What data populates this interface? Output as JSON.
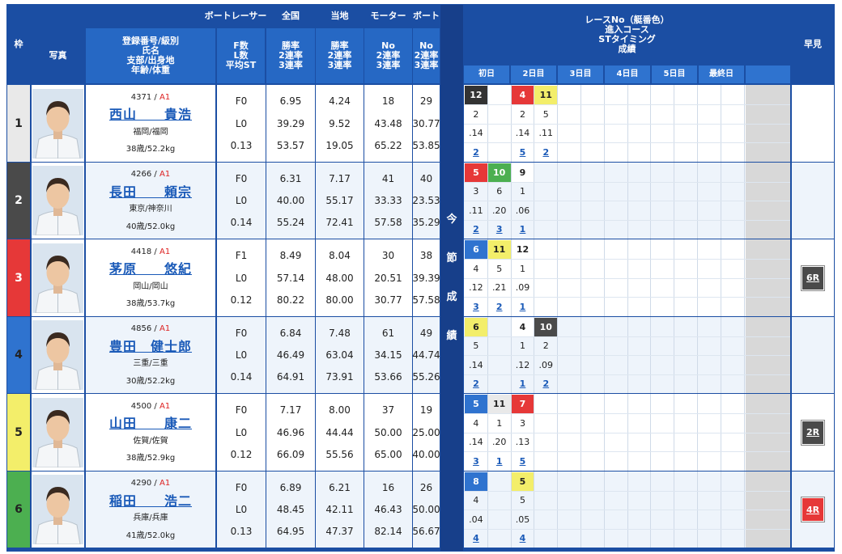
{
  "header": {
    "waku": "枠",
    "photo": "写真",
    "racer": "ボートレーサー",
    "racer_sub": [
      "登録番号/級別",
      "氏名",
      "支部/出身地",
      "年齢/体重"
    ],
    "fl_sub": [
      "F数",
      "L数",
      "平均ST"
    ],
    "zenkoku": "全国",
    "zenkoku_sub": [
      "勝率",
      "2連率",
      "3連率"
    ],
    "touchi": "当地",
    "touchi_sub": [
      "勝率",
      "2連率",
      "3連率"
    ],
    "motor": "モーター",
    "motor_sub": [
      "No",
      "2連率",
      "3連率"
    ],
    "boat": "ボート",
    "boat_sub": [
      "No",
      "2連率",
      "3連率"
    ],
    "race_info": [
      "レースNo（艇番色）",
      "進入コース",
      "STタイミング",
      "成績"
    ],
    "days": [
      "初日",
      "2日目",
      "3日目",
      "4日目",
      "5日目",
      "最終日"
    ],
    "hayami": "早見",
    "konsetsu": [
      "今",
      "節",
      "成",
      "績"
    ]
  },
  "racers": [
    {
      "lane": "1",
      "reg": "4371",
      "class": "A1",
      "name": "西山　　貴浩",
      "branch": "福岡/福岡",
      "age_weight": "38歳/52.2kg",
      "f": "F0",
      "l": "L0",
      "st": "0.13",
      "zenkoku": [
        "6.95",
        "39.29",
        "53.57"
      ],
      "touchi": [
        "4.24",
        "9.52",
        "19.05"
      ],
      "motor": [
        "18",
        "43.48",
        "65.22"
      ],
      "boat": [
        "29",
        "30.77",
        "53.85"
      ],
      "color": "#e9e9e9",
      "text_color": "#222",
      "results": [
        {
          "col": 0,
          "race": "12",
          "box": "#333",
          "fg": "#fff",
          "course": "2",
          "st": ".14",
          "result": "2"
        },
        {
          "col": 2,
          "race": "4",
          "box": "#e63838",
          "fg": "#fff",
          "course": "2",
          "st": ".14",
          "result": "5"
        },
        {
          "col": 3,
          "race": "11",
          "box": "#f3ee6a",
          "fg": "#222",
          "course": "5",
          "st": ".11",
          "result": "2"
        }
      ],
      "hayami": ""
    },
    {
      "lane": "2",
      "reg": "4266",
      "class": "A1",
      "name": "長田　　頼宗",
      "branch": "東京/神奈川",
      "age_weight": "40歳/52.0kg",
      "f": "F0",
      "l": "L0",
      "st": "0.14",
      "zenkoku": [
        "6.31",
        "40.00",
        "55.24"
      ],
      "touchi": [
        "7.17",
        "55.17",
        "72.41"
      ],
      "motor": [
        "41",
        "33.33",
        "57.58"
      ],
      "boat": [
        "40",
        "23.53",
        "35.29"
      ],
      "color": "#4a4a4a",
      "text_color": "#fff",
      "results": [
        {
          "col": 0,
          "race": "5",
          "box": "#e63838",
          "fg": "#fff",
          "course": "3",
          "st": ".11",
          "result": "2"
        },
        {
          "col": 1,
          "race": "10",
          "box": "#4caf50",
          "fg": "#fff",
          "course": "6",
          "st": ".20",
          "result": "3"
        },
        {
          "col": 2,
          "race": "9",
          "box": "#ffffff",
          "fg": "#222",
          "course": "1",
          "st": ".06",
          "result": "1"
        }
      ],
      "hayami": ""
    },
    {
      "lane": "3",
      "reg": "4418",
      "class": "A1",
      "name": "茅原　　悠紀",
      "branch": "岡山/岡山",
      "age_weight": "38歳/53.7kg",
      "f": "F1",
      "l": "L0",
      "st": "0.12",
      "zenkoku": [
        "8.49",
        "57.14",
        "80.22"
      ],
      "touchi": [
        "8.04",
        "48.00",
        "80.00"
      ],
      "motor": [
        "30",
        "20.51",
        "30.77"
      ],
      "boat": [
        "38",
        "39.39",
        "57.58"
      ],
      "color": "#e63838",
      "text_color": "#fff",
      "results": [
        {
          "col": 0,
          "race": "6",
          "box": "#2f73cf",
          "fg": "#fff",
          "course": "4",
          "st": ".12",
          "result": "3"
        },
        {
          "col": 1,
          "race": "11",
          "box": "#f3ee6a",
          "fg": "#222",
          "course": "5",
          "st": ".21",
          "result": "2"
        },
        {
          "col": 2,
          "race": "12",
          "box": "#ffffff",
          "fg": "#222",
          "course": "1",
          "st": ".09",
          "result": "1"
        }
      ],
      "hayami": "6R",
      "hayami_color": "#4a4a4a"
    },
    {
      "lane": "4",
      "reg": "4856",
      "class": "A1",
      "name": "豊田　健士郎",
      "branch": "三重/三重",
      "age_weight": "30歳/52.2kg",
      "f": "F0",
      "l": "L0",
      "st": "0.14",
      "zenkoku": [
        "6.84",
        "46.49",
        "64.91"
      ],
      "touchi": [
        "7.48",
        "63.04",
        "73.91"
      ],
      "motor": [
        "61",
        "34.15",
        "53.66"
      ],
      "boat": [
        "49",
        "44.74",
        "55.26"
      ],
      "color": "#2f73cf",
      "text_color": "#222",
      "results": [
        {
          "col": 0,
          "race": "6",
          "box": "#f3ee6a",
          "fg": "#222",
          "course": "5",
          "st": ".14",
          "result": "2"
        },
        {
          "col": 2,
          "race": "4",
          "box": "#ffffff",
          "fg": "#222",
          "course": "1",
          "st": ".12",
          "result": "1"
        },
        {
          "col": 3,
          "race": "10",
          "box": "#4a4a4a",
          "fg": "#fff",
          "course": "2",
          "st": ".09",
          "result": "2"
        }
      ],
      "hayami": ""
    },
    {
      "lane": "5",
      "reg": "4500",
      "class": "A1",
      "name": "山田　　康二",
      "branch": "佐賀/佐賀",
      "age_weight": "38歳/52.9kg",
      "f": "F0",
      "l": "L0",
      "st": "0.12",
      "zenkoku": [
        "7.17",
        "46.96",
        "66.09"
      ],
      "touchi": [
        "8.00",
        "44.44",
        "55.56"
      ],
      "motor": [
        "37",
        "50.00",
        "65.00"
      ],
      "boat": [
        "19",
        "25.00",
        "40.00"
      ],
      "color": "#f3ee6a",
      "text_color": "#222",
      "results": [
        {
          "col": 0,
          "race": "5",
          "box": "#2f73cf",
          "fg": "#fff",
          "course": "4",
          "st": ".14",
          "result": "3"
        },
        {
          "col": 1,
          "race": "11",
          "box": "#e9e9e9",
          "fg": "#222",
          "course": "1",
          "st": ".20",
          "result": "1"
        },
        {
          "col": 2,
          "race": "7",
          "box": "#e63838",
          "fg": "#fff",
          "course": "3",
          "st": ".13",
          "result": "5"
        }
      ],
      "hayami": "2R",
      "hayami_color": "#4a4a4a"
    },
    {
      "lane": "6",
      "reg": "4290",
      "class": "A1",
      "name": "稲田　　浩二",
      "branch": "兵庫/兵庫",
      "age_weight": "41歳/52.0kg",
      "f": "F0",
      "l": "L0",
      "st": "0.13",
      "zenkoku": [
        "6.89",
        "48.45",
        "64.95"
      ],
      "touchi": [
        "6.21",
        "42.11",
        "47.37"
      ],
      "motor": [
        "16",
        "46.43",
        "82.14"
      ],
      "boat": [
        "26",
        "50.00",
        "56.67"
      ],
      "color": "#4caf50",
      "text_color": "#222",
      "results": [
        {
          "col": 0,
          "race": "8",
          "box": "#2f73cf",
          "fg": "#fff",
          "course": "4",
          "st": ".04",
          "result": "4"
        },
        {
          "col": 2,
          "race": "5",
          "box": "#f3ee6a",
          "fg": "#222",
          "course": "5",
          "st": ".05",
          "result": "4"
        }
      ],
      "hayami": "4R",
      "hayami_color": "#e63838"
    }
  ]
}
